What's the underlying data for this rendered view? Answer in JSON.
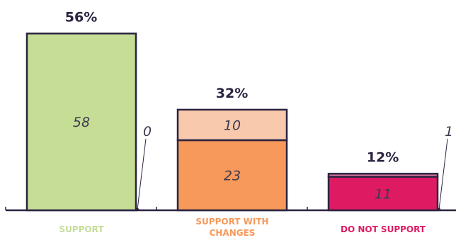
{
  "chart_data": {
    "type": "bar",
    "stacked": true,
    "categories": [
      "SUPPORT",
      "SUPPORT WITH CHANGES",
      "DO NOT SUPPORT"
    ],
    "category_lines": [
      [
        "SUPPORT"
      ],
      [
        "SUPPORT WITH",
        "CHANGES"
      ],
      [
        "DO NOT SUPPORT"
      ]
    ],
    "category_colors": [
      "#c5dd95",
      "#f7995a",
      "#de1a63"
    ],
    "percent_labels": [
      "56%",
      "32%",
      "12%"
    ],
    "series": [
      {
        "values": [
          58,
          23,
          11
        ],
        "colors": [
          "#c5dd95",
          "#f7995a",
          "#de1a63"
        ]
      },
      {
        "values": [
          0,
          10,
          1
        ],
        "colors": [
          "#c5dd95",
          "#f9c9ad",
          "#e77ea8"
        ]
      }
    ],
    "title": "",
    "xlabel": "",
    "ylabel": "",
    "ylim": [
      0,
      60
    ],
    "grid": false,
    "legend": "none"
  }
}
